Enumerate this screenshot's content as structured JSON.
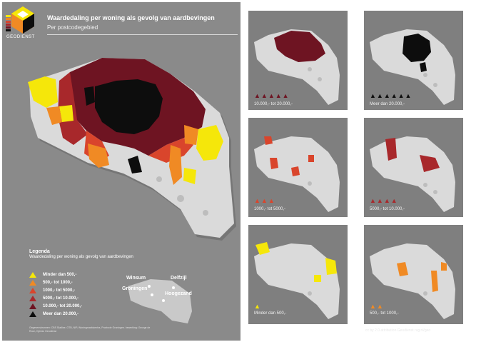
{
  "header": {
    "title": "Waardedaling per woning als gevolg van aardbevingen",
    "subtitle": "Per postcodegebied",
    "logo_text": "GEODIENST"
  },
  "legend": {
    "title": "Legenda",
    "subtitle": "Waardedaling per woning als gevolg van aardbevingen",
    "items": [
      {
        "label": "Minder dan 500,-",
        "color": "#f5e70a"
      },
      {
        "label": "500,- tot 1000,-",
        "color": "#f08a24"
      },
      {
        "label": "1000,- tot 5000,-",
        "color": "#d9452c"
      },
      {
        "label": "5000,- tot 10.000,-",
        "color": "#a8282b"
      },
      {
        "label": "10.000,- tot 20.000,-",
        "color": "#6e1422"
      },
      {
        "label": "Meer dan 20.000,-",
        "color": "#0d0d0d"
      }
    ]
  },
  "panels": [
    {
      "label": "10.000,- tot 20.000,-",
      "color": "#6e1422"
    },
    {
      "label": "Meer dan 20.000,-",
      "color": "#0d0d0d"
    },
    {
      "label": "1000,- tot 5000,-",
      "color": "#d9452c"
    },
    {
      "label": "5000,- tot 10.000,-",
      "color": "#a8282b"
    },
    {
      "label": "Minder dan 500,-",
      "color": "#f5e70a"
    },
    {
      "label": "500,- tot 1000,-",
      "color": "#f08a24"
    }
  ],
  "cities": {
    "winsum": "Winsum",
    "delfzijl": "Delfzijl",
    "groningen": "Groningen",
    "hoogezand": "Hoogezand"
  },
  "credits": "Gegevensbronnen: CBS Statline, OTB, NIP, Woningmarktcentra, Provincie Groningen. bewerking: George de Roon, Kjerlan Geodienst",
  "attribution": "cc by 2.0 attribution Geodienst rug.nl/geo"
}
